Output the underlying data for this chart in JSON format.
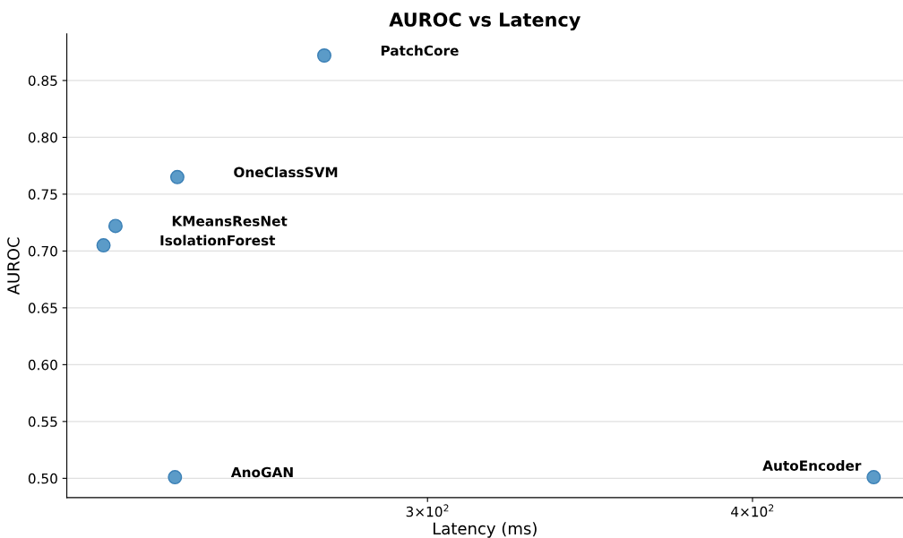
{
  "chart_data": {
    "type": "scatter",
    "title": "AUROC vs Latency",
    "xlabel": "Latency (ms)",
    "ylabel": "AUROC",
    "log": "x",
    "xlim": [
      218,
      457
    ],
    "xticks": [
      {
        "value": 300,
        "label": "3×10$^{2}$"
      },
      {
        "value": 400,
        "label": "4×10$^{2}$"
      }
    ],
    "ylim": [
      0.483,
      0.891
    ],
    "yticks": [
      {
        "value": 0.5,
        "label": "0.50"
      },
      0.55,
      {
        "value": 0.6,
        "label": "0.60"
      },
      0.65,
      {
        "value": 0.7,
        "label": "0.70"
      },
      0.75,
      {
        "value": 0.8,
        "label": "0.80"
      },
      0.85
    ],
    "grid": "y",
    "marker": "circle",
    "series": [
      {
        "color": "#5b9bc8",
        "x": [
          273.8,
          240.4,
          227.6,
          225.2,
          239.9,
          445.3
        ],
        "values": [
          0.872,
          0.765,
          0.722,
          0.705,
          0.501,
          0.501
        ]
      }
    ],
    "annotations": [
      "PatchCore",
      "OneClassSVM",
      "KMeansResNet",
      "IsolationForest",
      "AnoGAN",
      "AutoEncoder"
    ]
  }
}
